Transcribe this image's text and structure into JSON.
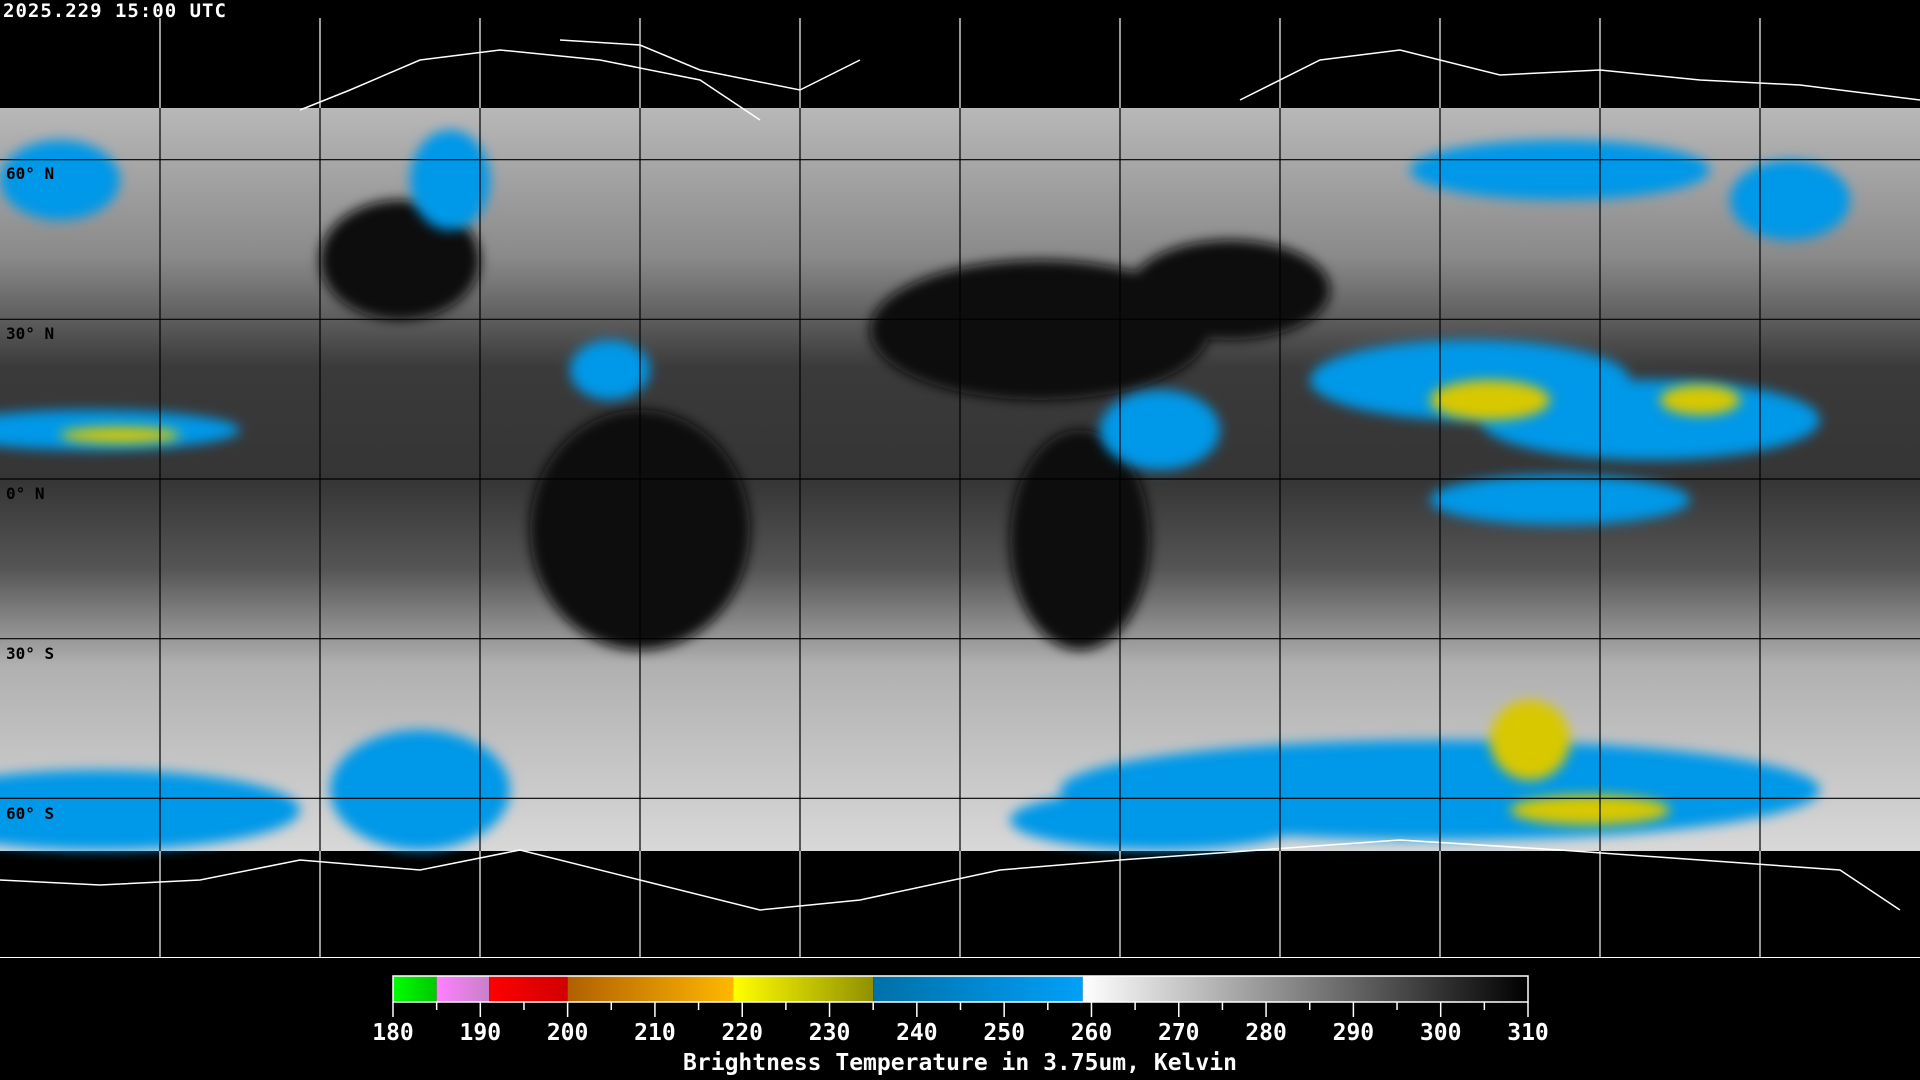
{
  "header": {
    "timestamp": "2025.229 15:00 UTC"
  },
  "map": {
    "projection": "equirectangular",
    "grid_spacing_degrees": 30,
    "lat_labels": [
      "60° N",
      "30° N",
      "0° N",
      "30° S",
      "60° S"
    ],
    "lat_values": [
      60,
      30,
      0,
      -30,
      -60
    ]
  },
  "colorbar": {
    "title": "Brightness Temperature in 3.75um, Kelvin",
    "min": 180,
    "max": 310,
    "tick_labels": [
      "180",
      "190",
      "200",
      "210",
      "220",
      "230",
      "240",
      "250",
      "260",
      "270",
      "280",
      "290",
      "300",
      "310"
    ],
    "segments": [
      {
        "from": 180,
        "to": 185,
        "start": "#00ff00",
        "end": "#00c800"
      },
      {
        "from": 185,
        "to": 191,
        "start": "#ff80ff",
        "end": "#c880c8"
      },
      {
        "from": 191,
        "to": 200,
        "start": "#ff0000",
        "end": "#d00000"
      },
      {
        "from": 200,
        "to": 219,
        "start": "#b06000",
        "end": "#ffb800"
      },
      {
        "from": 219,
        "to": 235,
        "start": "#ffff00",
        "end": "#909000"
      },
      {
        "from": 235,
        "to": 259,
        "start": "#0070a8",
        "end": "#00a0f8"
      },
      {
        "from": 259,
        "to": 310,
        "start": "#ffffff",
        "end": "#000000"
      }
    ]
  }
}
